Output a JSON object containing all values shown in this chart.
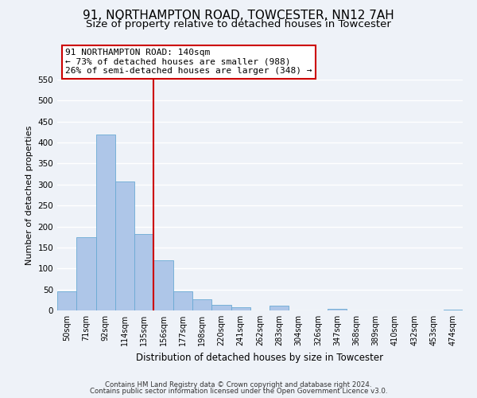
{
  "title": "91, NORTHAMPTON ROAD, TOWCESTER, NN12 7AH",
  "subtitle": "Size of property relative to detached houses in Towcester",
  "xlabel": "Distribution of detached houses by size in Towcester",
  "ylabel": "Number of detached properties",
  "bin_labels": [
    "50sqm",
    "71sqm",
    "92sqm",
    "114sqm",
    "135sqm",
    "156sqm",
    "177sqm",
    "198sqm",
    "220sqm",
    "241sqm",
    "262sqm",
    "283sqm",
    "304sqm",
    "326sqm",
    "347sqm",
    "368sqm",
    "389sqm",
    "410sqm",
    "432sqm",
    "453sqm",
    "474sqm"
  ],
  "bar_values": [
    46,
    175,
    420,
    308,
    183,
    120,
    46,
    27,
    13,
    8,
    0,
    11,
    0,
    0,
    3,
    0,
    0,
    0,
    0,
    0,
    2
  ],
  "bar_color": "#aec6e8",
  "bar_edgecolor": "#6aaad4",
  "vline_x": 4.5,
  "vline_color": "#cc0000",
  "ylim": [
    0,
    550
  ],
  "yticks": [
    0,
    50,
    100,
    150,
    200,
    250,
    300,
    350,
    400,
    450,
    500,
    550
  ],
  "annotation_text": "91 NORTHAMPTON ROAD: 140sqm\n← 73% of detached houses are smaller (988)\n26% of semi-detached houses are larger (348) →",
  "annotation_box_edgecolor": "#cc0000",
  "annotation_box_facecolor": "#ffffff",
  "footer_line1": "Contains HM Land Registry data © Crown copyright and database right 2024.",
  "footer_line2": "Contains public sector information licensed under the Open Government Licence v3.0.",
  "background_color": "#eef2f8",
  "grid_color": "#ffffff",
  "title_fontsize": 11,
  "subtitle_fontsize": 9.5,
  "title_fontweight": "normal"
}
